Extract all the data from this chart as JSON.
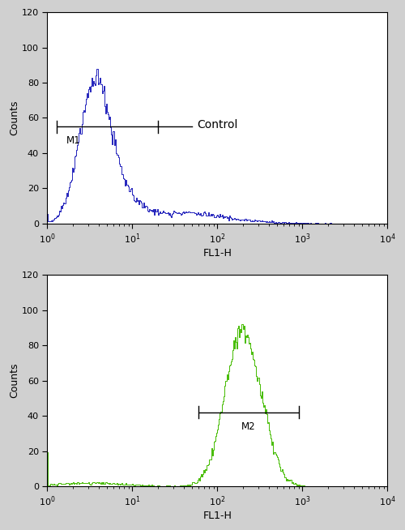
{
  "top_plot": {
    "color": "#2222bb",
    "peak_x_log": 0.55,
    "peak_y": 88,
    "m1_x1": 1.3,
    "m1_x2": 20,
    "m1_y": 55,
    "m1_label": "M1",
    "annotation": "Control"
  },
  "bottom_plot": {
    "color": "#44bb00",
    "peak_x_log": 2.28,
    "peak_y": 92,
    "m2_x1": 60,
    "m2_x2": 900,
    "m2_y": 42,
    "m2_label": "M2"
  },
  "xlim": [
    1,
    10000
  ],
  "ylim": [
    0,
    120
  ],
  "yticks": [
    0,
    20,
    40,
    60,
    80,
    100,
    120
  ],
  "xlabel": "FL1-H",
  "ylabel": "Counts",
  "plot_bg": "#ffffff",
  "fig_bg": "#d0d0d0",
  "top_frame": true,
  "right_frame": false
}
